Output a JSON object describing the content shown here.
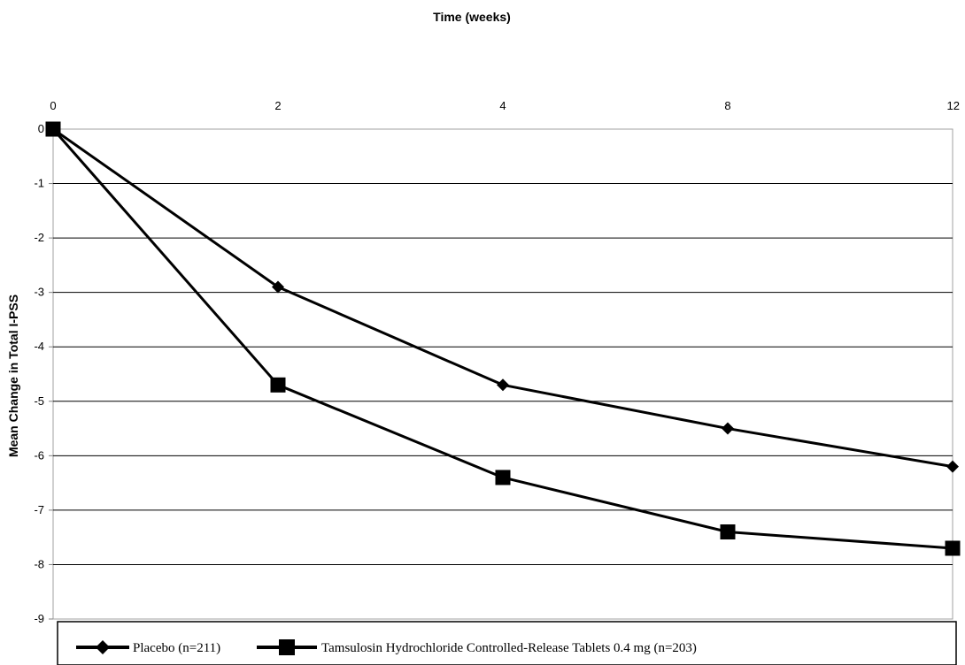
{
  "chart_data": {
    "type": "line",
    "title": "Time (weeks)",
    "xlabel": "Time (weeks)",
    "ylabel": "Mean Change in Total I-PSS",
    "x": [
      "0",
      "2",
      "4",
      "8",
      "12"
    ],
    "ylim": [
      -9,
      0
    ],
    "yticks": [
      "0",
      "-1",
      "-2",
      "-3",
      "-4",
      "-5",
      "-6",
      "-7",
      "-8",
      "-9"
    ],
    "x_axis_position": "top",
    "grid": "horizontal",
    "legend_position": "bottom",
    "series": [
      {
        "name": "Placebo (n=211)",
        "marker": "diamond",
        "color": "#000000",
        "values": [
          0,
          -2.9,
          -4.7,
          -5.5,
          -6.2
        ]
      },
      {
        "name": "Tamsulosin Hydrochloride Controlled-Release Tablets 0.4 mg (n=203)",
        "marker": "square",
        "color": "#000000",
        "values": [
          0,
          -4.7,
          -6.4,
          -7.4,
          -7.7
        ]
      }
    ]
  }
}
